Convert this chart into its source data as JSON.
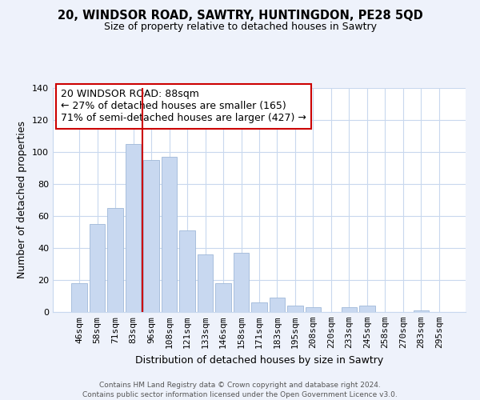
{
  "title": "20, WINDSOR ROAD, SAWTRY, HUNTINGDON, PE28 5QD",
  "subtitle": "Size of property relative to detached houses in Sawtry",
  "xlabel": "Distribution of detached houses by size in Sawtry",
  "ylabel": "Number of detached properties",
  "footer_line1": "Contains HM Land Registry data © Crown copyright and database right 2024.",
  "footer_line2": "Contains public sector information licensed under the Open Government Licence v3.0.",
  "bar_labels": [
    "46sqm",
    "58sqm",
    "71sqm",
    "83sqm",
    "96sqm",
    "108sqm",
    "121sqm",
    "133sqm",
    "146sqm",
    "158sqm",
    "171sqm",
    "183sqm",
    "195sqm",
    "208sqm",
    "220sqm",
    "233sqm",
    "245sqm",
    "258sqm",
    "270sqm",
    "283sqm",
    "295sqm"
  ],
  "bar_values": [
    18,
    55,
    65,
    105,
    95,
    97,
    51,
    36,
    18,
    37,
    6,
    9,
    4,
    3,
    0,
    3,
    4,
    0,
    0,
    1,
    0
  ],
  "bar_color": "#c8d8f0",
  "bar_edge_color": "#a0b8d8",
  "vline_x": 3.5,
  "vline_color": "#cc0000",
  "annotation_line1": "20 WINDSOR ROAD: 88sqm",
  "annotation_line2": "← 27% of detached houses are smaller (165)",
  "annotation_line3": "71% of semi-detached houses are larger (427) →",
  "ylim": [
    0,
    140
  ],
  "yticks": [
    0,
    20,
    40,
    60,
    80,
    100,
    120,
    140
  ],
  "background_color": "#eef2fb",
  "plot_bg_color": "#ffffff",
  "grid_color": "#c8d8ee",
  "title_fontsize": 10.5,
  "subtitle_fontsize": 9,
  "axis_label_fontsize": 9,
  "tick_fontsize": 8,
  "annotation_fontsize": 9,
  "footer_fontsize": 6.5
}
